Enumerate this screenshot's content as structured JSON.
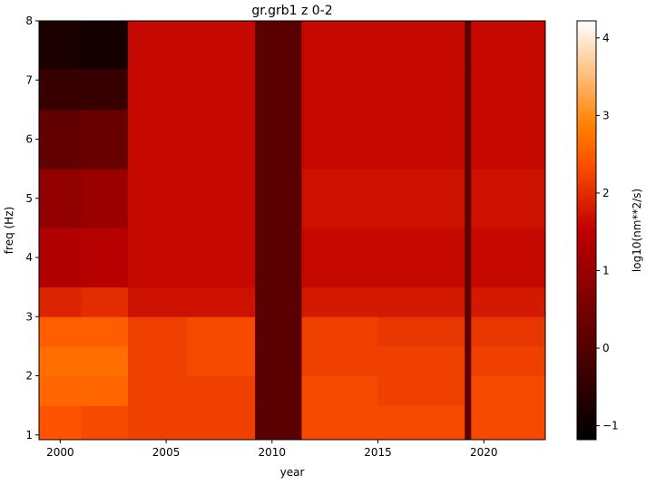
{
  "chart_data": {
    "type": "heatmap",
    "title": "gr.grb1 z 0-2",
    "x_label": "year",
    "y_label": "freq (Hz)",
    "colormap": "gist_heat",
    "x_edges": [
      1999,
      2001,
      2003.2,
      2006,
      2009.2,
      2011.4,
      2015,
      2019.1,
      2019.4,
      2022.9
    ],
    "y_edges": [
      0.92,
      1.5,
      2.0,
      2.5,
      3.0,
      3.5,
      4.5,
      5.5,
      6.5,
      7.2,
      8
    ],
    "z": [
      [
        2.4,
        2.3,
        2.2,
        2.2,
        0.1,
        2.3,
        2.3,
        0.1,
        2.3
      ],
      [
        2.6,
        2.6,
        2.2,
        2.2,
        0.1,
        2.3,
        2.2,
        0.1,
        2.3
      ],
      [
        2.7,
        2.7,
        2.2,
        2.3,
        0.1,
        2.2,
        2.2,
        0.1,
        2.2
      ],
      [
        2.5,
        2.5,
        2.2,
        2.3,
        0.1,
        2.2,
        2.1,
        0.1,
        2.1
      ],
      [
        1.9,
        2.0,
        1.7,
        1.7,
        0.1,
        1.8,
        1.8,
        0.1,
        1.8
      ],
      [
        1.3,
        1.4,
        1.6,
        1.6,
        0.1,
        1.6,
        1.6,
        0.1,
        1.6
      ],
      [
        0.9,
        1.0,
        1.6,
        1.6,
        0.1,
        1.7,
        1.7,
        0.1,
        1.7
      ],
      [
        0.2,
        0.3,
        1.6,
        1.6,
        0.1,
        1.6,
        1.6,
        0.1,
        1.6
      ],
      [
        -0.4,
        -0.4,
        1.6,
        1.6,
        0.1,
        1.6,
        1.6,
        0.1,
        1.6
      ],
      [
        -0.8,
        -0.9,
        1.6,
        1.6,
        0.1,
        1.6,
        1.6,
        0.1,
        1.6
      ]
    ],
    "xlim": [
      1999,
      2022.9
    ],
    "xticks": [
      2000,
      2005,
      2010,
      2015,
      2020
    ],
    "ylim": [
      0.92,
      8
    ],
    "yticks": [
      1,
      2,
      3,
      4,
      5,
      6,
      7,
      8
    ],
    "colorbar": {
      "label": "log10(nm**2/s)",
      "lim": [
        -1.18,
        4.22
      ],
      "ticks": [
        {
          "value": -1,
          "label": "−1"
        },
        0,
        1,
        2,
        3,
        4
      ]
    }
  }
}
